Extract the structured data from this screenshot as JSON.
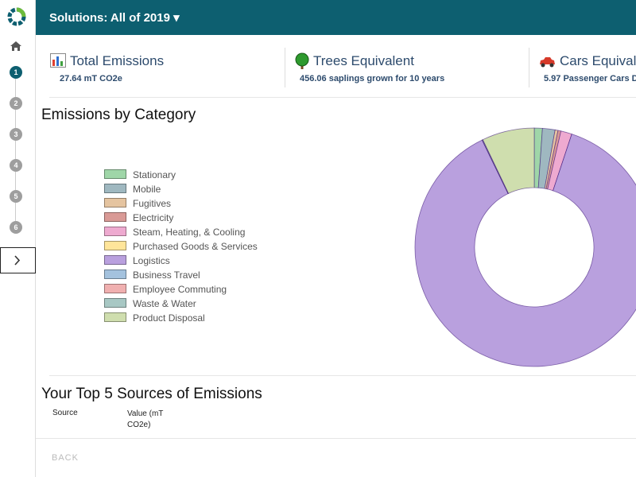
{
  "header": {
    "title": "Solutions: All of 2019"
  },
  "sidebar": {
    "steps": [
      "1",
      "2",
      "3",
      "4",
      "5",
      "6"
    ]
  },
  "cards": [
    {
      "title": "Total Emissions",
      "subtitle": "27.64 mT CO2e"
    },
    {
      "title": "Trees Equivalent",
      "subtitle": "456.06 saplings grown for 10 years"
    },
    {
      "title": "Cars Equivale",
      "subtitle": "5.97 Passenger Cars D"
    }
  ],
  "emissions_chart": {
    "type": "pie",
    "title": "Emissions by Category",
    "categories": [
      "Stationary",
      "Mobile",
      "Fugitives",
      "Electricity",
      "Steam, Heating, & Cooling",
      "Purchased Goods & Services",
      "Logistics",
      "Business Travel",
      "Employee Commuting",
      "Waste & Water",
      "Product Disposal"
    ],
    "colors": [
      "#9fd6a8",
      "#9fb8c0",
      "#e5c4a0",
      "#d99a96",
      "#eeaad0",
      "#ffe59a",
      "#b9a0de",
      "#a4c2de",
      "#f0b0b0",
      "#a8c8c4",
      "#cfdeae"
    ],
    "values": [
      1.1,
      1.7,
      0.4,
      0.4,
      1.5,
      0,
      87.7,
      0,
      0,
      0.1,
      7.1
    ]
  },
  "top_sources": {
    "title": "Your Top 5 Sources of Emissions",
    "columns": [
      "Source",
      "Value (mT CO2e)"
    ]
  },
  "footer": {
    "back": "BACK"
  }
}
